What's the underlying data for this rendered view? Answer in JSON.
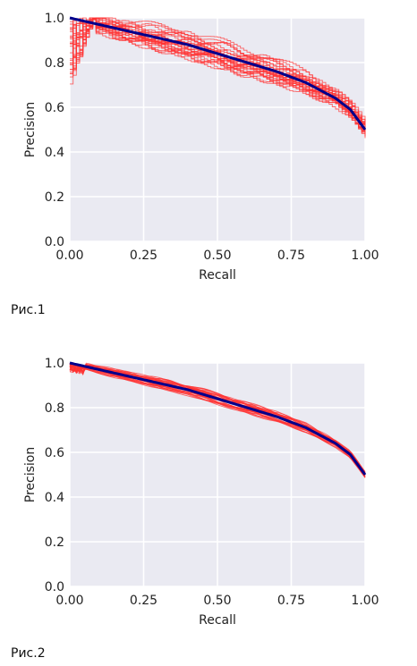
{
  "chart_data": [
    {
      "type": "line",
      "xlabel": "Recall",
      "ylabel": "Precision",
      "xlim": [
        0,
        1
      ],
      "ylim": [
        0,
        1
      ],
      "xticks": [
        "0.00",
        "0.25",
        "0.50",
        "0.75",
        "1.00"
      ],
      "yticks": [
        "0.0",
        "0.2",
        "0.4",
        "0.6",
        "0.8",
        "1.0"
      ],
      "grid": true,
      "background_color": "#eaeaf2",
      "mean_curve": {
        "color": "#00008b",
        "x": [
          0,
          0.1,
          0.2,
          0.3,
          0.4,
          0.5,
          0.6,
          0.7,
          0.8,
          0.9,
          0.95,
          1.0
        ],
        "y": [
          1.0,
          0.97,
          0.94,
          0.91,
          0.88,
          0.84,
          0.8,
          0.76,
          0.71,
          0.64,
          0.59,
          0.5
        ]
      },
      "individual_curves": {
        "color": "#ff3333",
        "count": 30,
        "spread": 0.06
      }
    },
    {
      "type": "line",
      "xlabel": "Recall",
      "ylabel": "Precision",
      "xlim": [
        0,
        1
      ],
      "ylim": [
        0,
        1
      ],
      "xticks": [
        "0.00",
        "0.25",
        "0.50",
        "0.75",
        "1.00"
      ],
      "yticks": [
        "0.0",
        "0.2",
        "0.4",
        "0.6",
        "0.8",
        "1.0"
      ],
      "grid": true,
      "background_color": "#eaeaf2",
      "mean_curve": {
        "color": "#00008b",
        "x": [
          0,
          0.1,
          0.2,
          0.3,
          0.4,
          0.5,
          0.6,
          0.7,
          0.8,
          0.9,
          0.95,
          1.0
        ],
        "y": [
          1.0,
          0.97,
          0.94,
          0.91,
          0.88,
          0.84,
          0.8,
          0.76,
          0.71,
          0.64,
          0.59,
          0.5
        ]
      },
      "individual_curves": {
        "color": "#ff3333",
        "count": 30,
        "spread": 0.025
      }
    }
  ],
  "captions": [
    "Рис.1",
    "Рис.2"
  ]
}
